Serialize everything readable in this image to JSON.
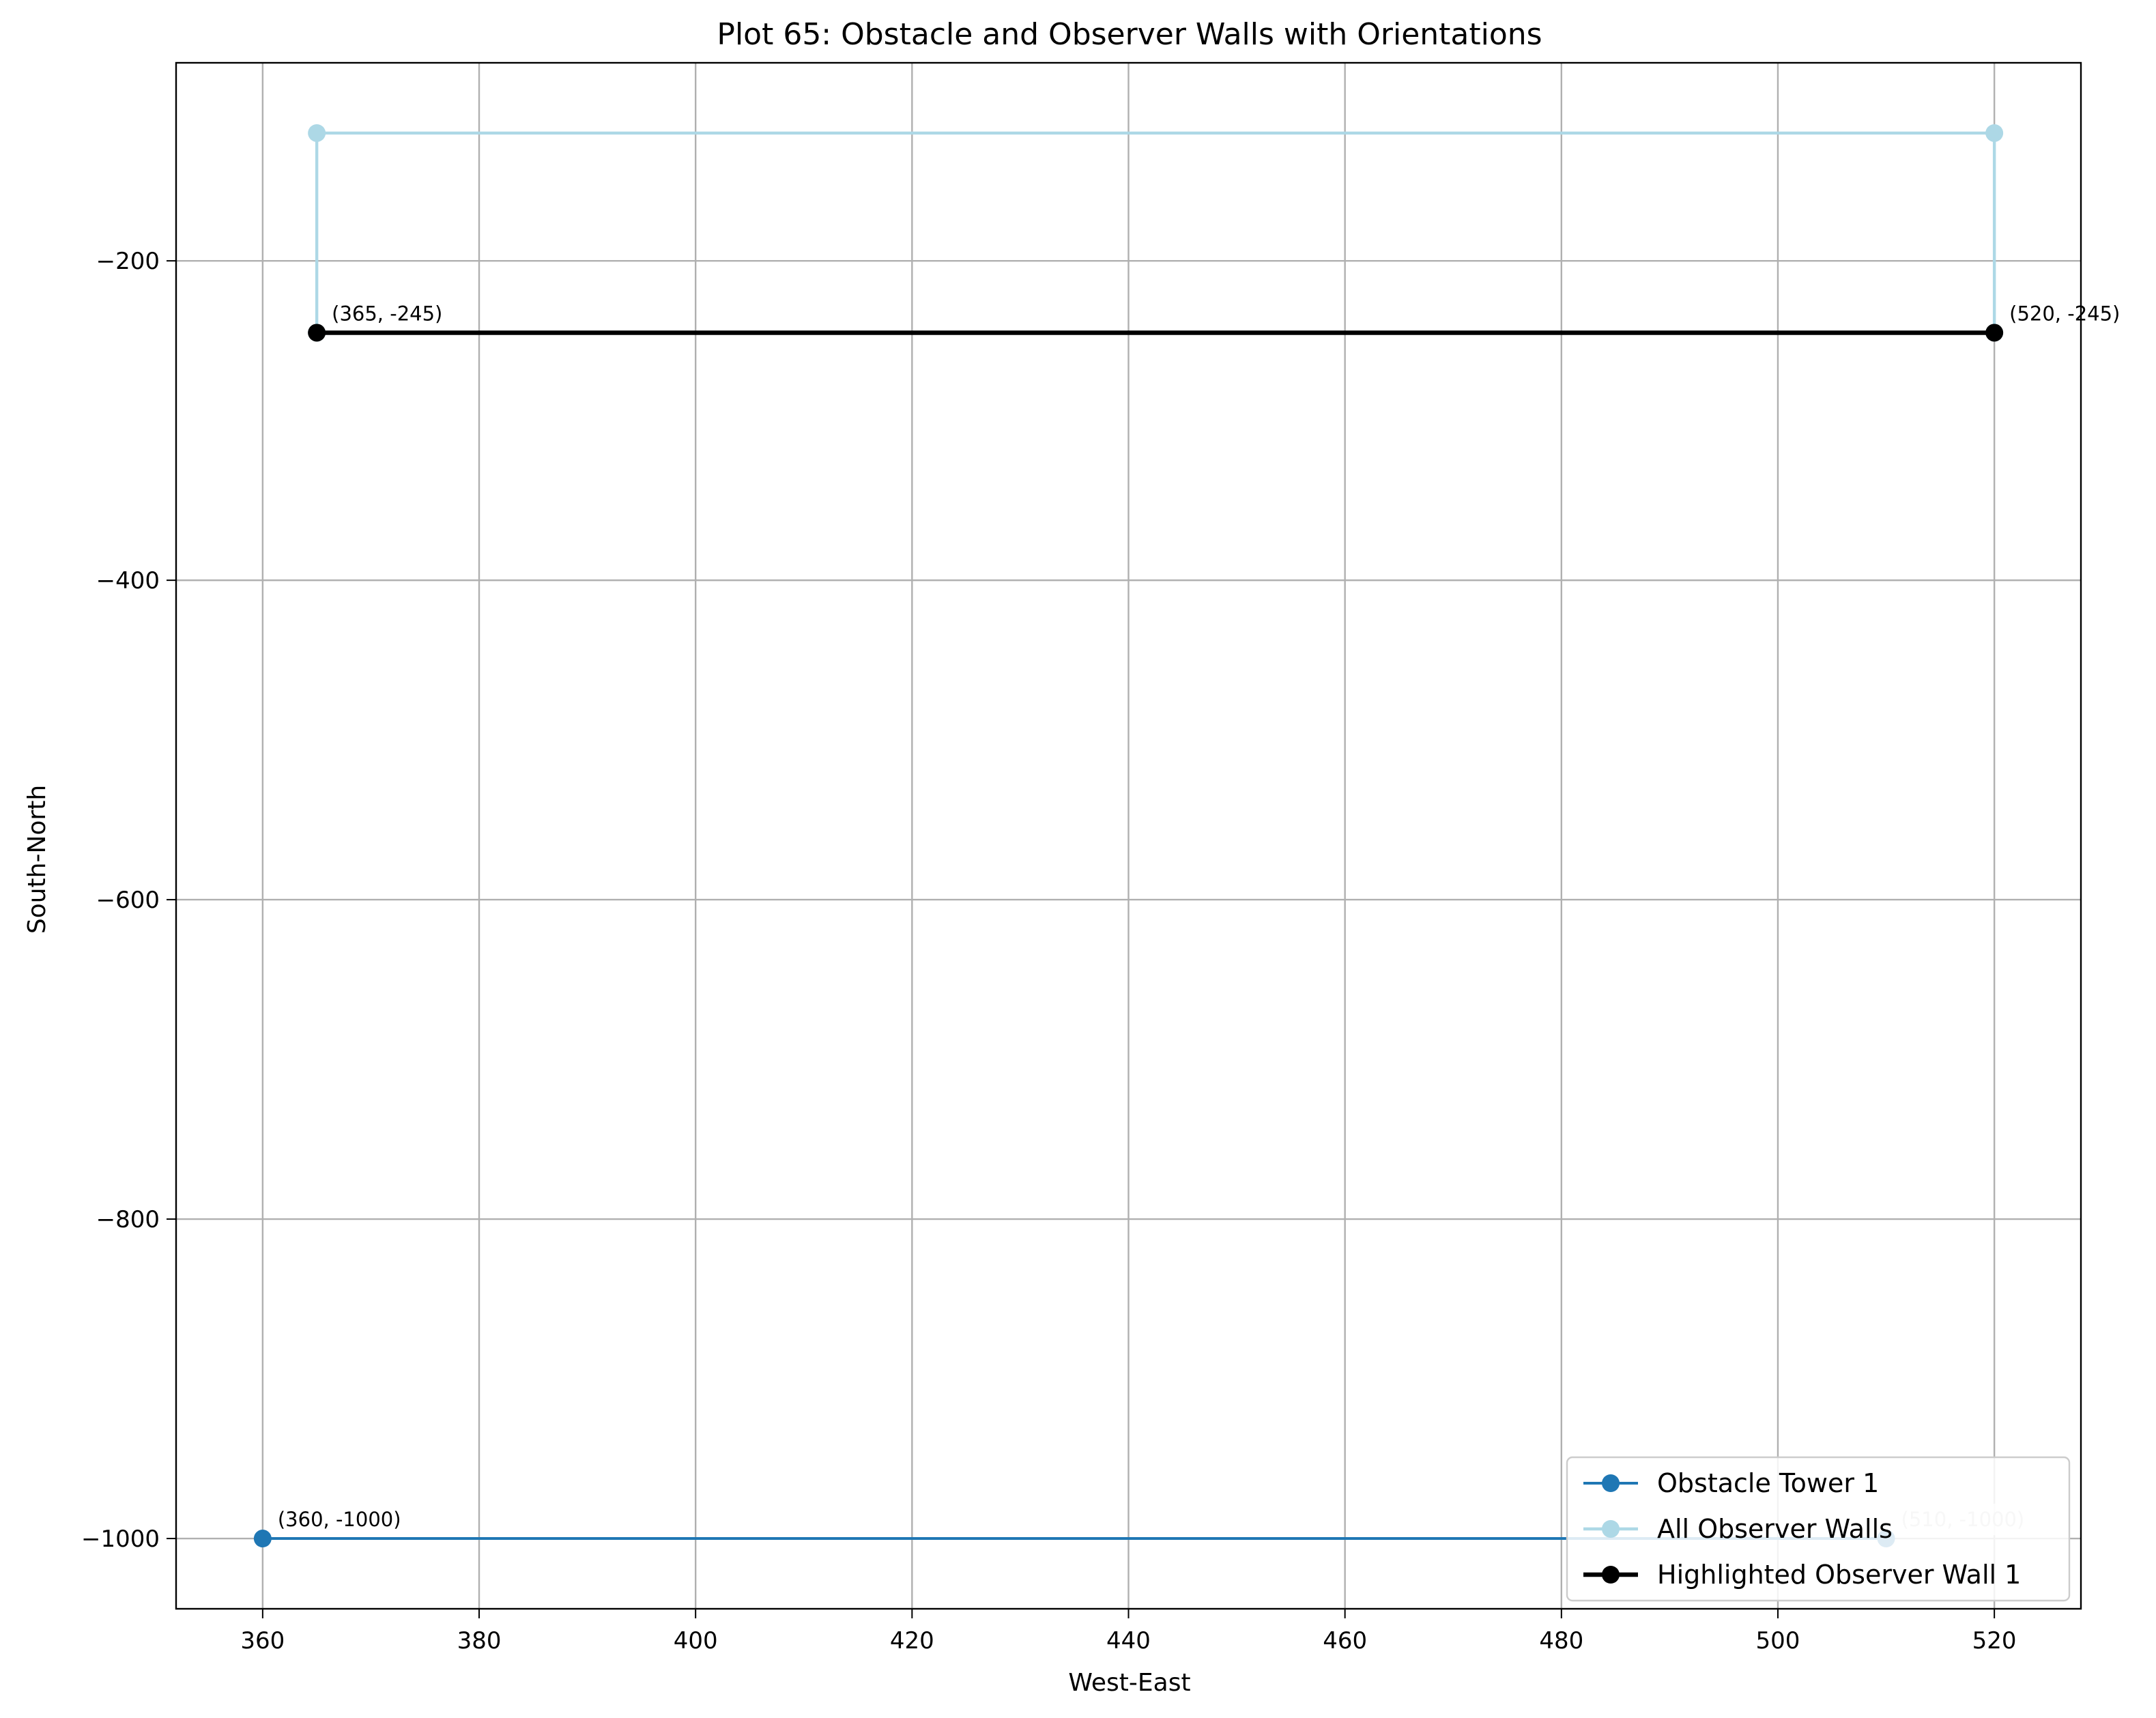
{
  "chart_data": {
    "type": "line",
    "title": "Plot 65: Obstacle and Observer Walls with Orientations",
    "xlabel": "West-East",
    "ylabel": "South-North",
    "xlim": [
      352,
      528
    ],
    "ylim": [
      -1044,
      -76
    ],
    "xticks": [
      360,
      380,
      400,
      420,
      440,
      460,
      480,
      500,
      520
    ],
    "yticks": [
      -200,
      -400,
      -600,
      -800,
      -1000
    ],
    "grid": true,
    "legend_position": "lower-right",
    "series": [
      {
        "name": "Obstacle Tower 1",
        "color": "#1f77b4",
        "points": [
          [
            360,
            -1000
          ],
          [
            510,
            -1000
          ]
        ]
      },
      {
        "name": "All Observer Walls",
        "color": "#add8e6",
        "points": [
          [
            365,
            -245
          ],
          [
            365,
            -120
          ],
          [
            520,
            -120
          ],
          [
            520,
            -245
          ]
        ]
      },
      {
        "name": "Highlighted Observer Wall 1",
        "color": "#000000",
        "points": [
          [
            365,
            -245
          ],
          [
            520,
            -245
          ]
        ]
      }
    ],
    "annotations": [
      {
        "text": "(365, -245)",
        "x": 365,
        "y": -245,
        "color": "#000000"
      },
      {
        "text": "(520, -245)",
        "x": 520,
        "y": -245,
        "color": "#000000"
      },
      {
        "text": "(360, -1000)",
        "x": 360,
        "y": -1000,
        "color": "#000000"
      },
      {
        "text": "(510, -1000)",
        "x": 510,
        "y": -1000,
        "color": "#c8c8c8"
      }
    ]
  }
}
